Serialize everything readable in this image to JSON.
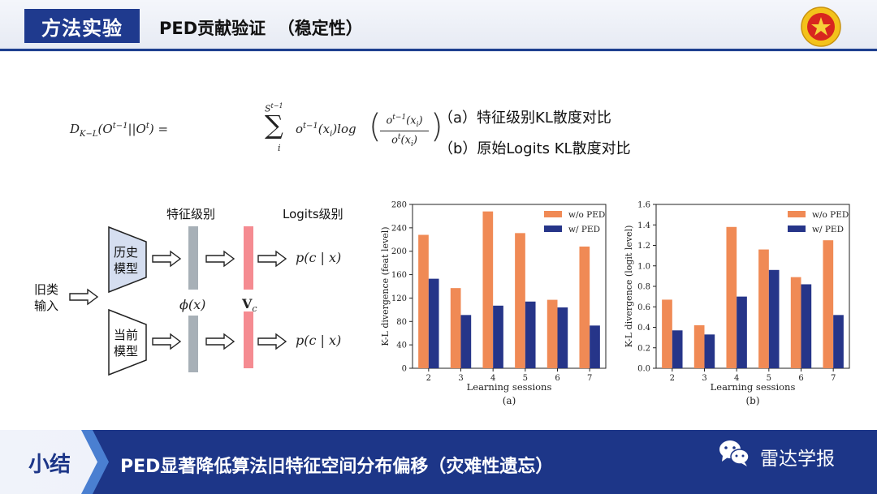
{
  "header": {
    "badge": "方法实验",
    "title": "PED贡献验证  （稳定性）"
  },
  "captions": {
    "a": "（a）特征级别KL散度对比",
    "b": "（b）原始Logits KL散度对比"
  },
  "diagram": {
    "feature_level": "特征级别",
    "logits_level": "Logits级别",
    "input": [
      "旧类",
      "输入"
    ],
    "old_model": [
      "历史",
      "模型"
    ],
    "current_model": [
      "当前",
      "模型"
    ],
    "phi": "ϕ(x)",
    "vc": "V",
    "vc_sub": "c",
    "output": "p(c | x)"
  },
  "chart_data": [
    {
      "type": "bar",
      "categories": [
        "2",
        "3",
        "4",
        "5",
        "6",
        "7"
      ],
      "series": [
        {
          "name": "w/o PED",
          "values": [
            228,
            137,
            268,
            231,
            117,
            208
          ],
          "color": "#f08a55"
        },
        {
          "name": "w/ PED",
          "values": [
            153,
            91,
            107,
            114,
            104,
            73
          ],
          "color": "#263589"
        }
      ],
      "xlabel": "Learning sessions",
      "ylabel": "K-L divergence (feat level)",
      "ylim": [
        0,
        280
      ],
      "yticks": [
        0,
        40,
        80,
        120,
        160,
        200,
        240,
        280
      ],
      "caption": "(a)",
      "legend": "top-right",
      "grid": false
    },
    {
      "type": "bar",
      "categories": [
        "2",
        "3",
        "4",
        "5",
        "6",
        "7"
      ],
      "series": [
        {
          "name": "w/o PED",
          "values": [
            0.67,
            0.42,
            1.38,
            1.16,
            0.89,
            1.25
          ],
          "color": "#f08a55"
        },
        {
          "name": "w/ PED",
          "values": [
            0.37,
            0.33,
            0.7,
            0.96,
            0.82,
            0.52
          ],
          "color": "#263589"
        }
      ],
      "xlabel": "Learning sessions",
      "ylabel": "K-L divergence (logit level)",
      "ylim": [
        0,
        1.6
      ],
      "yticks": [
        0.0,
        0.2,
        0.4,
        0.6,
        0.8,
        1.0,
        1.2,
        1.4,
        1.6
      ],
      "yformat": 1,
      "caption": "(b)",
      "legend": "top-right",
      "grid": false
    }
  ],
  "footer": {
    "tag": "小结",
    "summary": "PED显著降低算法旧特征空间分布偏移（灾难性遗忘）",
    "brand": "雷达学报"
  },
  "colors": {
    "navy": "#1d3688",
    "orange": "#f08a55"
  },
  "icons": [
    "emblem-logo",
    "wechat-icon"
  ]
}
